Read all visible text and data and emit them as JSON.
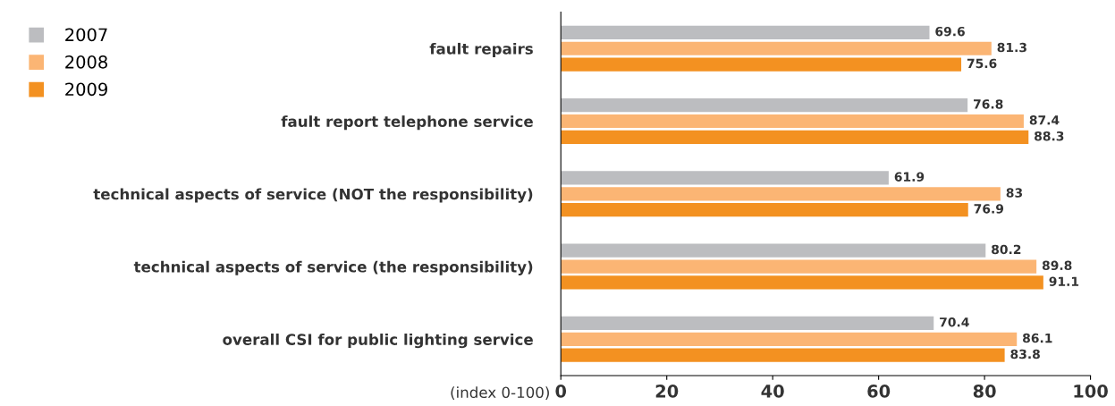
{
  "chart_data": {
    "type": "bar",
    "orientation": "horizontal",
    "xlabel": "(index 0-100)",
    "categories": [
      "fault repairs",
      "fault report telephone service",
      "technical aspects of service (NOT the responsibility)",
      "technical aspects of service (the responsibility)",
      "overall CSI for public lighting service"
    ],
    "series": [
      {
        "name": "2007",
        "color": "#bcbdc0",
        "values": [
          69.6,
          76.8,
          61.9,
          80.2,
          70.4
        ]
      },
      {
        "name": "2008",
        "color": "#fbb574",
        "values": [
          81.3,
          87.4,
          83,
          89.8,
          86.1
        ]
      },
      {
        "name": "2009",
        "color": "#f39121",
        "values": [
          75.6,
          88.3,
          76.9,
          91.1,
          83.8
        ]
      }
    ],
    "xlim": [
      0,
      100
    ],
    "xticks": [
      0,
      20,
      40,
      60,
      80,
      100
    ],
    "data_labels": true,
    "legend": "top left",
    "grid": false
  }
}
